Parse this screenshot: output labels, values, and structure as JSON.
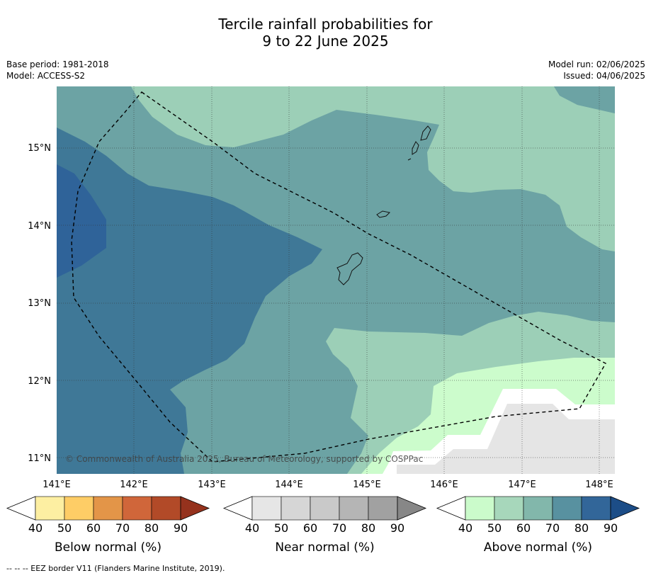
{
  "title_line1": "Tercile rainfall probabilities for",
  "title_line2": "9 to 22 June 2025",
  "base_period": "Base period: 1981-2018",
  "model": "Model: ACCESS-S2",
  "model_run": "Model run: 02/06/2025",
  "issued": "Issued: 04/06/2025",
  "copyright": "© Commonwealth of Australia 2025, Bureau of Meteorology, supported by COSPPac",
  "map": {
    "lon_labels": [
      "141°E",
      "142°E",
      "143°E",
      "144°E",
      "145°E",
      "146°E",
      "147°E",
      "148°E"
    ],
    "lat_labels": [
      "15°N",
      "14°N",
      "13°N",
      "12°N",
      "11°N"
    ],
    "colors": {
      "above_40": "#9ccfb7",
      "above_50": "#6ca3a4",
      "above_60": "#3f7897",
      "above_70": "#2f6399",
      "above_80": "#2f5e95",
      "near_normal_grey": "#e5e5e5",
      "white_band": "#ffffff",
      "light_green": "#ccfccc"
    }
  },
  "colorbars": [
    {
      "name": "below",
      "label": "Below normal (%)",
      "ticks": [
        "40",
        "50",
        "60",
        "70",
        "80",
        "90"
      ],
      "colors": [
        "#fdefa2",
        "#fecd66",
        "#e39548",
        "#d0663a",
        "#b24a28",
        "#95321d"
      ]
    },
    {
      "name": "near",
      "label": "Near normal (%)",
      "ticks": [
        "40",
        "50",
        "60",
        "70",
        "80",
        "90"
      ],
      "colors": [
        "#e6e6e6",
        "#d6d6d6",
        "#c9c9c9",
        "#b5b5b5",
        "#a1a1a1",
        "#878787"
      ]
    },
    {
      "name": "above",
      "label": "Above normal (%)",
      "ticks": [
        "40",
        "50",
        "60",
        "70",
        "80",
        "90"
      ],
      "colors": [
        "#cbfbcb",
        "#a7d7bb",
        "#82b7ab",
        "#5891a0",
        "#326699",
        "#1c4d87"
      ]
    }
  ],
  "legend_eez": "--  --  -- EEZ border V11 (Flanders Marine Institute, 2019)."
}
